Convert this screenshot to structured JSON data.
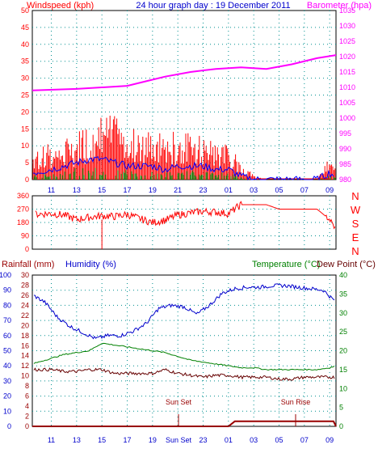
{
  "header": {
    "windspeed_label": "Windspeed (kph)",
    "title": "24 hour graph day : 19 December 2011",
    "barometer_label": "Barometer (hpa)"
  },
  "labels": {
    "rainfall": "Rainfall (mm)",
    "humidity": "Humidity (%)",
    "temperature": "Temperature (°C)",
    "dewpoint": "Dew Point (°C)",
    "sunset": "Sun Set",
    "sunrise": "Sun Rise",
    "sunset_tick": "Sun Set"
  },
  "colors": {
    "wind_gust": "#ff0000",
    "wind_avg": "#0000ff",
    "wind_calm": "#008000",
    "barometer": "#ff00ff",
    "direction": "#ff0000",
    "humidity": "#0000cc",
    "temperature": "#008000",
    "dewpoint": "#660000",
    "rain": "#990000"
  },
  "x_ticks": [
    "11",
    "13",
    "15",
    "17",
    "19",
    "21",
    "23",
    "01",
    "03",
    "05",
    "07",
    "09"
  ],
  "x_ticks_bottom": [
    "11",
    "13",
    "15",
    "17",
    "19",
    "",
    "23",
    "01",
    "03",
    "05",
    "07",
    "09"
  ],
  "compass": [
    "N",
    "W",
    "S",
    "E",
    "N"
  ],
  "chart_data": [
    {
      "type": "line",
      "name": "wind-barometer",
      "x_range_hours": [
        9.5,
        33.5
      ],
      "left_axis": {
        "label": "Windspeed (kph)",
        "ticks": [
          0,
          5,
          10,
          15,
          20,
          25,
          30,
          35,
          40,
          45,
          50
        ]
      },
      "right_axis": {
        "label": "Barometer (hpa)",
        "ticks": [
          980,
          985,
          990,
          995,
          1000,
          1005,
          1010,
          1015,
          1020,
          1025,
          1030,
          1035
        ]
      },
      "series": [
        {
          "name": "Barometer (hpa)",
          "x": [
            9.5,
            13,
            17,
            18.5,
            20,
            22,
            24,
            26,
            28,
            30,
            32,
            33.5
          ],
          "values": [
            1009,
            1009.5,
            1010.5,
            1012,
            1013.5,
            1015,
            1016,
            1016.5,
            1016,
            1017.5,
            1019.5,
            1020.5
          ]
        },
        {
          "x": [
            9.5,
            11,
            12,
            13,
            14,
            15,
            16,
            17,
            18,
            19,
            20,
            21,
            22,
            23,
            24,
            25,
            26,
            27,
            28,
            29,
            30,
            31,
            32,
            33,
            33.5
          ],
          "values": [
            7,
            8,
            9,
            11,
            13,
            15,
            14,
            12,
            12,
            11,
            10,
            11,
            10,
            10,
            9,
            8,
            4,
            1,
            0,
            0,
            0,
            0,
            0,
            5,
            2
          ]
        },
        {
          "x": [
            9.5,
            11,
            12,
            13,
            14,
            15,
            16,
            17,
            18,
            19,
            20,
            21,
            22,
            23,
            24,
            25,
            26,
            27,
            28,
            29,
            30,
            31,
            32,
            33,
            33.5
          ],
          "values": [
            2,
            3,
            4,
            5,
            6,
            6,
            5,
            4,
            4,
            4,
            3,
            4,
            4,
            4,
            3,
            3,
            1,
            0,
            0,
            0,
            0,
            0,
            0,
            2,
            1
          ]
        }
      ]
    },
    {
      "type": "line",
      "name": "wind-direction",
      "y_ticks": [
        0,
        90,
        180,
        270,
        360
      ],
      "x": [
        9.5,
        11,
        12,
        13,
        14,
        15,
        16,
        17,
        18,
        19,
        20,
        21,
        22,
        23,
        24,
        25,
        26,
        27,
        28,
        29,
        30,
        31,
        32,
        33,
        33.5
      ],
      "values": [
        235,
        240,
        230,
        200,
        215,
        225,
        220,
        235,
        205,
        180,
        195,
        230,
        245,
        255,
        250,
        240,
        300,
        300,
        300,
        270,
        270,
        270,
        270,
        200,
        130
      ]
    },
    {
      "type": "line",
      "name": "temperature-humidity",
      "left_axis_humidity": [
        0,
        10,
        20,
        30,
        40,
        50,
        60,
        70,
        80,
        90,
        100
      ],
      "left_axis_rain": [
        0,
        2,
        4,
        6,
        8,
        10,
        12,
        14,
        16,
        18,
        20,
        22,
        24,
        26,
        28,
        30
      ],
      "right_axis_temperature": [
        0,
        5,
        10,
        15,
        20,
        25,
        30,
        35,
        40
      ],
      "series": [
        {
          "name": "Humidity (%)",
          "x": [
            9.5,
            10.5,
            11.5,
            12.5,
            13.5,
            14.5,
            15.5,
            16.5,
            17.5,
            18.5,
            19.5,
            20.5,
            21.5,
            22.5,
            23.5,
            24.5,
            25.5,
            26.5,
            27.5,
            28.5,
            29.5,
            30.5,
            31.5,
            32.5,
            33.5
          ],
          "values": [
            87,
            82,
            72,
            66,
            62,
            58,
            60,
            60,
            63,
            68,
            78,
            80,
            79,
            74,
            80,
            88,
            91,
            92,
            92,
            93,
            93,
            92,
            91,
            90,
            82
          ]
        },
        {
          "name": "Temperature (°C)",
          "x": [
            9.5,
            11,
            12,
            13,
            14,
            15,
            16,
            17,
            18,
            19,
            20,
            21,
            22,
            23,
            24,
            25,
            26,
            27,
            28,
            29,
            30,
            31,
            32,
            33,
            33.5
          ],
          "values": [
            16.5,
            18,
            19,
            19.5,
            20,
            22,
            21.5,
            21,
            20.5,
            20,
            19.5,
            18.5,
            17.5,
            17,
            16.5,
            16,
            15.5,
            15.5,
            15,
            15,
            15,
            15,
            15,
            15.5,
            16
          ]
        },
        {
          "name": "Dew Point (°C)",
          "x": [
            9.5,
            11,
            12,
            13,
            14,
            15,
            16,
            17,
            18,
            19,
            20,
            21,
            22,
            23,
            24,
            25,
            26,
            27,
            28,
            29,
            30,
            31,
            32,
            33,
            33.5
          ],
          "values": [
            15,
            15,
            14.5,
            14.5,
            15,
            15,
            14,
            14,
            14,
            14,
            15,
            14,
            13.5,
            13,
            13.5,
            13.5,
            13,
            13,
            13,
            12.5,
            12.5,
            13,
            13,
            13,
            13
          ]
        },
        {
          "name": "Rainfall (mm)",
          "x": [
            9.5,
            24,
            25,
            25.5,
            26,
            33.3,
            33.5
          ],
          "values": [
            0,
            0,
            0,
            1,
            1,
            1,
            0
          ]
        }
      ]
    }
  ]
}
